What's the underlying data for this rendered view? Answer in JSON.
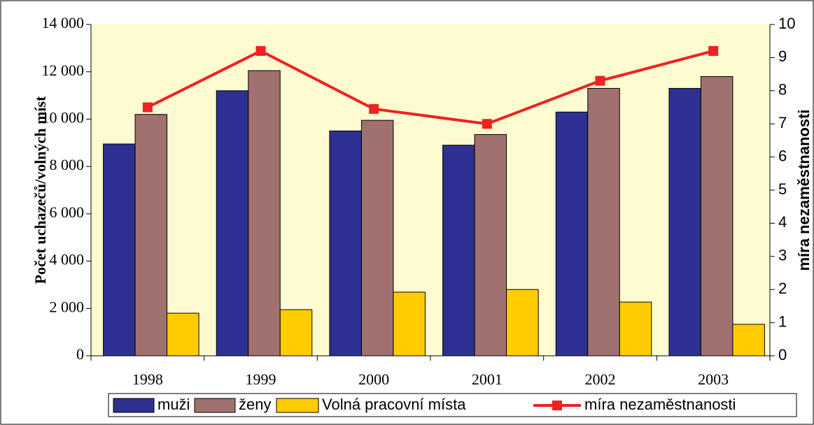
{
  "chart_data": {
    "type": "bar",
    "categories": [
      "1998",
      "1999",
      "2000",
      "2001",
      "2002",
      "2003"
    ],
    "series": [
      {
        "name": "muži",
        "color": "#2e3192",
        "values": [
          8950,
          11200,
          9500,
          8900,
          10300,
          11300
        ]
      },
      {
        "name": "ženy",
        "color": "#a0716f",
        "values": [
          10200,
          12050,
          9950,
          9350,
          11300,
          11800
        ]
      },
      {
        "name": "Volná pracovní místa",
        "color": "#ffcc00",
        "values": [
          1800,
          1950,
          2690,
          2800,
          2270,
          1330
        ]
      },
      {
        "name": "míra nezaměstnanosti",
        "color": "#ee2222",
        "type": "line",
        "axis": "y2",
        "values": [
          7.5,
          9.2,
          7.45,
          7.0,
          8.3,
          9.2
        ]
      }
    ],
    "ylabel": "Počet uchazečů/volných míst",
    "y2label": "míra nezaměstnanosti",
    "ylim": [
      0,
      14000
    ],
    "yticks": [
      0,
      {
        "value": 2000,
        "label": "2 000"
      },
      {
        "value": 4000,
        "label": "4 000"
      },
      {
        "value": 6000,
        "label": "6 000"
      },
      {
        "value": 8000,
        "label": "8 000"
      },
      {
        "value": 10000,
        "label": "10 000"
      },
      {
        "value": 12000,
        "label": "12 000"
      },
      {
        "value": 14000,
        "label": "14 000"
      }
    ],
    "y2lim": [
      0,
      10
    ],
    "y2ticks": [
      0,
      1,
      2,
      3,
      4,
      5,
      6,
      7,
      8,
      9,
      10
    ],
    "legend": "bottom",
    "background": "#fffbd0"
  }
}
